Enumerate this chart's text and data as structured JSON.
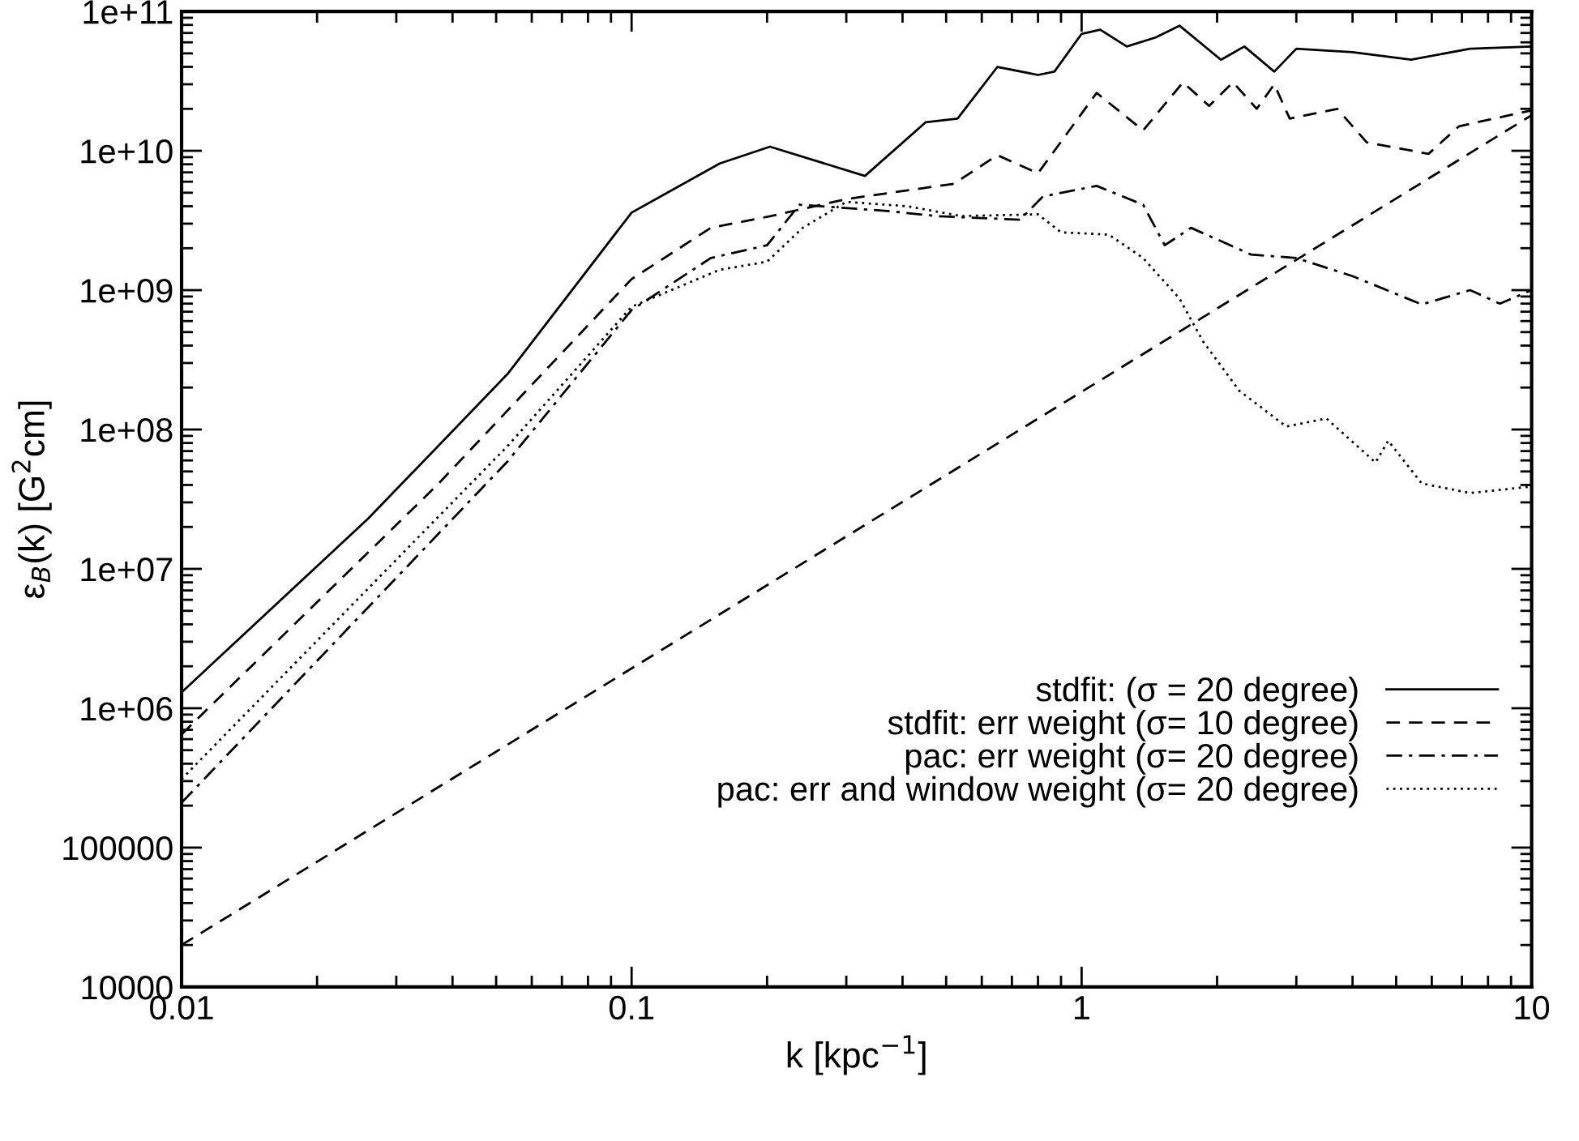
{
  "chart_data": {
    "type": "line",
    "xlabel": "k [kpc$^{−1}$]",
    "ylabel": "ε$_{B}$(k) [G$^{2}$cm]",
    "log": "xy",
    "xlim": [
      0.01,
      10
    ],
    "xticks": [
      0.01,
      0.1,
      1,
      10
    ],
    "ylim": [
      10000,
      100000000000.0
    ],
    "yticks": [
      10000,
      100000,
      {
        "value": 1000000.0,
        "label": "1e+06"
      },
      {
        "value": 10000000.0,
        "label": "1e+07"
      },
      {
        "value": 100000000.0,
        "label": "1e+08"
      },
      {
        "value": 1000000000.0,
        "label": "1e+09"
      },
      {
        "value": 10000000000.0,
        "label": "1e+10"
      },
      {
        "value": 100000000000.0,
        "label": "1e+11"
      }
    ],
    "grid": false,
    "legend": "bottom right",
    "series": [
      {
        "name": "stdfit: (σ = 20 degree)",
        "color": "#000000",
        "line_style": "solid",
        "x": [
          0.01,
          0.026,
          0.053,
          0.1,
          0.157,
          0.203,
          0.33,
          0.45,
          0.53,
          0.65,
          0.8,
          0.87,
          1.0,
          1.1,
          1.26,
          1.46,
          1.65,
          2.04,
          2.3,
          2.68,
          3.0,
          4.0,
          5.4,
          7.3,
          10
        ],
        "values": [
          1300000.0,
          23000000.0,
          250000000.0,
          3600000000.0,
          8100000000.0,
          10700000000.0,
          6600000000.0,
          16000000000.0,
          17000000000.0,
          40000000000.0,
          35000000000.0,
          37000000000.0,
          69000000000.0,
          74000000000.0,
          56000000000.0,
          65000000000.0,
          79000000000.0,
          45000000000.0,
          56000000000.0,
          37000000000.0,
          54000000000.0,
          51000000000.0,
          45000000000.0,
          54000000000.0,
          56000000000.0
        ]
      },
      {
        "name": "stdfit: err weight (σ= 10 degree)",
        "color": "#000000",
        "line_style": "dashed",
        "x": [
          0.01,
          0.037,
          0.1,
          0.15,
          0.204,
          0.3,
          0.52,
          0.65,
          0.8,
          1.08,
          1.37,
          1.68,
          1.92,
          2.17,
          2.45,
          2.68,
          2.9,
          3.7,
          4.3,
          5.9,
          6.9,
          10
        ],
        "values": [
          650000.0,
          40000000.0,
          1200000000.0,
          2800000000.0,
          3400000000.0,
          4500000000.0,
          5800000000.0,
          9300000000.0,
          6900000000.0,
          26000000000.0,
          14000000000.0,
          31000000000.0,
          21000000000.0,
          31000000000.0,
          20000000000.0,
          30000000000.0,
          17000000000.0,
          20000000000.0,
          11500000000.0,
          9500000000.0,
          15000000000.0,
          19500000000.0
        ]
      },
      {
        "name": "pac: err weight (σ= 20 degree)",
        "color": "#000000",
        "line_style": "dashdot",
        "x": [
          0.01,
          0.053,
          0.1,
          0.15,
          0.2,
          0.236,
          0.37,
          0.475,
          0.73,
          0.82,
          1.08,
          1.37,
          1.53,
          1.75,
          2.38,
          3.0,
          4.0,
          5.7,
          7.3,
          8.5,
          10
        ],
        "values": [
          210000.0,
          59000000.0,
          720000000.0,
          1700000000.0,
          2100000000.0,
          4100000000.0,
          3700000000.0,
          3400000000.0,
          3200000000.0,
          4700000000.0,
          5600000000.0,
          4100000000.0,
          2100000000.0,
          2800000000.0,
          1800000000.0,
          1700000000.0,
          1260000000.0,
          790000000.0,
          1000000000.0,
          800000000.0,
          1000000000.0
        ]
      },
      {
        "name": "pac: err and window weight (σ= 20 degree)",
        "color": "#000000",
        "line_style": "dotted",
        "x": [
          0.01,
          0.053,
          0.1,
          0.157,
          0.2,
          0.24,
          0.3,
          0.41,
          0.54,
          0.8,
          0.9,
          1.15,
          1.37,
          1.65,
          1.86,
          2.24,
          2.85,
          3.5,
          4.5,
          4.8,
          5.7,
          7.3,
          10
        ],
        "values": [
          310000.0,
          76000000.0,
          760000000.0,
          1400000000.0,
          1600000000.0,
          2800000000.0,
          4300000000.0,
          4000000000.0,
          3400000000.0,
          3500000000.0,
          2600000000.0,
          2500000000.0,
          1700000000.0,
          870000000.0,
          430000000.0,
          190000000.0,
          105000000.0,
          120000000.0,
          58000000.0,
          83000000.0,
          41000000.0,
          35000000.0,
          39000000.0
        ]
      },
      {
        "color": "#000000",
        "line_style": "dashed",
        "x": [
          0.01,
          10
        ],
        "values": [
          20000.0,
          18000000000.0
        ]
      }
    ]
  }
}
